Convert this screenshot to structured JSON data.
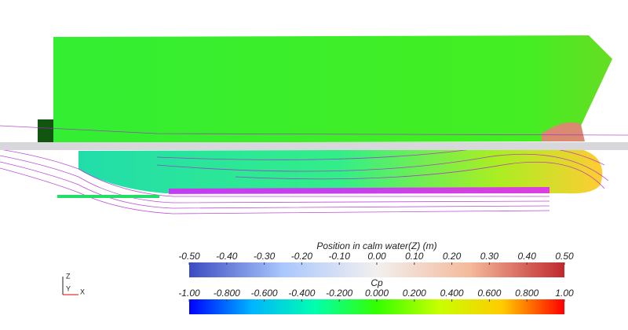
{
  "legends": [
    {
      "title": "Position in calm water(Z) (m)",
      "range": [
        -0.5,
        0.5
      ],
      "colors": [
        "#3b4cc0",
        "#aac7fd",
        "#f2f0ef",
        "#f4b99b",
        "#c0282d"
      ],
      "ticks": [
        {
          "value": -0.5,
          "label": "-0.50"
        },
        {
          "value": -0.4,
          "label": "-0.40"
        },
        {
          "value": -0.3,
          "label": "-0.30"
        },
        {
          "value": -0.2,
          "label": "-0.20"
        },
        {
          "value": -0.1,
          "label": "-0.10"
        },
        {
          "value": 0,
          "label": "0.00"
        },
        {
          "value": 0.1,
          "label": "0.10"
        },
        {
          "value": 0.2,
          "label": "0.20"
        },
        {
          "value": 0.3,
          "label": "0.30"
        },
        {
          "value": 0.4,
          "label": "0.40"
        },
        {
          "value": 0.5,
          "label": "0.50"
        }
      ]
    },
    {
      "title": "Cp",
      "range": [
        -1,
        1
      ],
      "colors": [
        "#0000ff",
        "#00b4ff",
        "#00ffb0",
        "#33ff00",
        "#c8ff00",
        "#ffcc00",
        "#ff0000"
      ],
      "ticks": [
        {
          "value": -1,
          "label": "-1.00"
        },
        {
          "value": -0.8,
          "label": "-0.800"
        },
        {
          "value": -0.6,
          "label": "-0.600"
        },
        {
          "value": -0.4,
          "label": "-0.400"
        },
        {
          "value": -0.2,
          "label": "-0.200"
        },
        {
          "value": 0,
          "label": "0.000"
        },
        {
          "value": 0.2,
          "label": "0.200"
        },
        {
          "value": 0.4,
          "label": "0.400"
        },
        {
          "value": 0.6,
          "label": "0.600"
        },
        {
          "value": 0.8,
          "label": "0.800"
        },
        {
          "value": 1,
          "label": "1.00"
        }
      ]
    }
  ],
  "axes_triad": {
    "z": "Z",
    "y": "Y",
    "x": "X"
  }
}
